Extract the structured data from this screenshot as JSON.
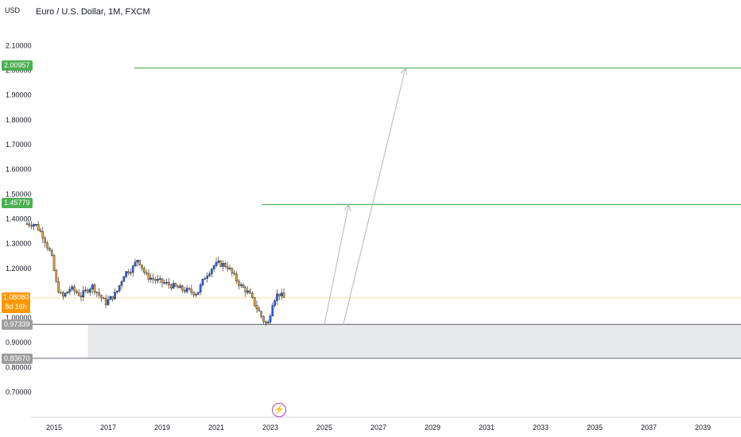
{
  "header": {
    "title": "Euro / U.S. Dollar, 1M, FXCM",
    "unit": "USD"
  },
  "current_price": {
    "value": "1.08080",
    "countdown": "8d 16h",
    "color": "#ff9800"
  },
  "levels": [
    {
      "value": "2.00957",
      "color": "#4caf50"
    },
    {
      "value": "1.45779",
      "color": "#4caf50"
    },
    {
      "value": "0.97339",
      "color": "#787b86"
    },
    {
      "value": "0.83670",
      "color": "#787b86"
    }
  ],
  "icons": {
    "event": "lightning-bolt-icon"
  },
  "chart_data": {
    "type": "candlestick",
    "title": "Euro / U.S. Dollar, 1M, FXCM",
    "ylabel": "USD",
    "y_ticks": [
      "2.10000",
      "2.00000",
      "1.90000",
      "1.80000",
      "1.70000",
      "1.60000",
      "1.50000",
      "1.40000",
      "1.30000",
      "1.20000",
      "1.00000",
      "0.90000",
      "0.80000",
      "0.70000"
    ],
    "x_ticks": [
      "2015",
      "2017",
      "2019",
      "2021",
      "2023",
      "2025",
      "2027",
      "2029",
      "2031",
      "2033",
      "2035",
      "2037",
      "2039"
    ],
    "ylim": [
      0.64,
      2.15
    ],
    "xlim": [
      2014.0,
      2041.4
    ],
    "grid": false,
    "up_color": "#2962ff",
    "down_color": "#e2a23b",
    "price_path": [
      [
        2014.0,
        1.38
      ],
      [
        2014.3,
        1.38
      ],
      [
        2014.6,
        1.33
      ],
      [
        2014.9,
        1.25
      ],
      [
        2015.1,
        1.13
      ],
      [
        2015.3,
        1.08
      ],
      [
        2015.6,
        1.12
      ],
      [
        2016.0,
        1.09
      ],
      [
        2016.4,
        1.13
      ],
      [
        2016.9,
        1.06
      ],
      [
        2017.3,
        1.1
      ],
      [
        2017.6,
        1.18
      ],
      [
        2017.9,
        1.2
      ],
      [
        2018.1,
        1.24
      ],
      [
        2018.4,
        1.17
      ],
      [
        2018.8,
        1.15
      ],
      [
        2019.1,
        1.14
      ],
      [
        2019.6,
        1.12
      ],
      [
        2019.9,
        1.11
      ],
      [
        2020.3,
        1.1
      ],
      [
        2020.6,
        1.17
      ],
      [
        2020.9,
        1.21
      ],
      [
        2021.1,
        1.22
      ],
      [
        2021.4,
        1.21
      ],
      [
        2021.7,
        1.16
      ],
      [
        2021.9,
        1.13
      ],
      [
        2022.2,
        1.1
      ],
      [
        2022.5,
        1.04
      ],
      [
        2022.8,
        0.98
      ],
      [
        2022.9,
        0.97
      ],
      [
        2023.1,
        1.07
      ],
      [
        2023.3,
        1.1
      ],
      [
        2023.5,
        1.08
      ]
    ],
    "levels": [
      2.00957,
      1.45779,
      0.97339,
      0.8367
    ],
    "shaded_zone": [
      0.8367,
      0.97339
    ],
    "projection_arrows": [
      {
        "from": [
          2025.0,
          0.97339
        ],
        "to": [
          2025.9,
          1.45779
        ]
      },
      {
        "from": [
          2025.7,
          0.97339
        ],
        "to": [
          2028.0,
          2.00957
        ]
      }
    ],
    "current_price": 1.0808
  }
}
